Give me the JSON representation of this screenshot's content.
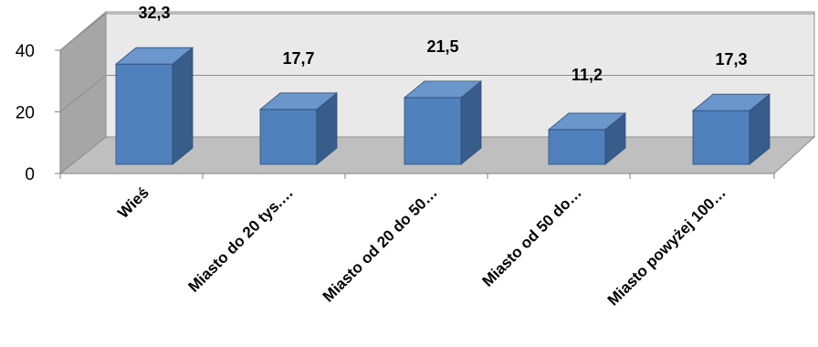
{
  "chart_data": {
    "type": "bar",
    "title": "",
    "xlabel": "",
    "ylabel": "",
    "ylim": [
      0,
      40
    ],
    "yticks": [
      0,
      20,
      40
    ],
    "grid": true,
    "categories": [
      "Wieś",
      "Miasto do 20 tys.…",
      "Miasto od 20 do 50…",
      "Miasto od 50 do…",
      "Miasto powyżej 100…"
    ],
    "values": [
      32.3,
      17.7,
      21.5,
      11.2,
      17.3
    ],
    "value_labels": [
      "32,3",
      "17,7",
      "21,5",
      "11,2",
      "17,3"
    ],
    "colors": {
      "bar_front": "#4f81bd",
      "bar_side": "#385d8a",
      "bar_top": "#6b96cc",
      "floor": "#bfbfbf",
      "back_wall": "#e9e9e9",
      "side_wall": "#a6a6a6"
    }
  }
}
